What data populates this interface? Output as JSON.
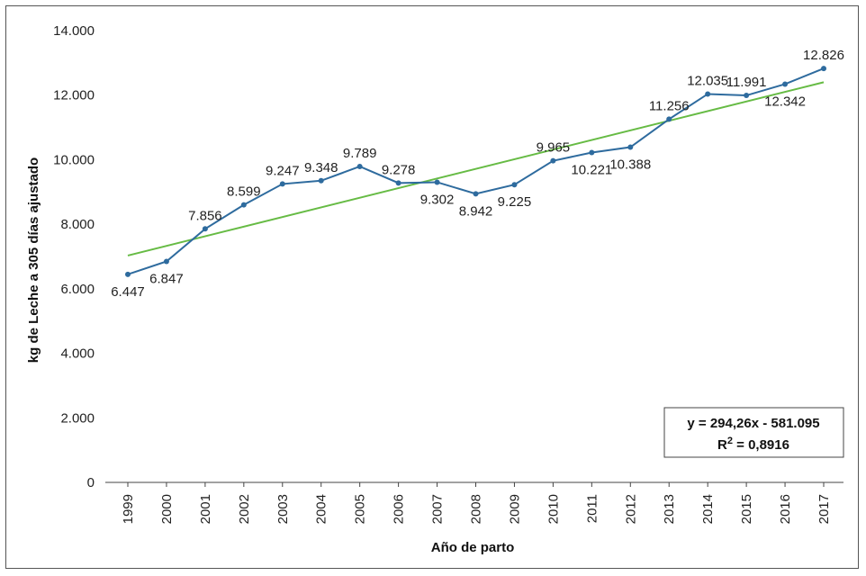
{
  "chart_data": {
    "type": "line",
    "xlabel": "Año de parto",
    "ylabel": "kg de Leche a 305 días ajustado",
    "ylim": [
      0,
      14000
    ],
    "y_ticks": [
      "0",
      "2.000",
      "4.000",
      "6.000",
      "8.000",
      "10.000",
      "12.000",
      "14.000"
    ],
    "categories": [
      "1999",
      "2000",
      "2001",
      "2002",
      "2003",
      "2004",
      "2005",
      "2006",
      "2007",
      "2008",
      "2009",
      "2010",
      "2011",
      "2012",
      "2013",
      "2014",
      "2015",
      "2016",
      "2017"
    ],
    "series": [
      {
        "values": [
          6447,
          6847,
          7856,
          8599,
          9247,
          9348,
          9789,
          9278,
          9302,
          8942,
          9225,
          9965,
          10221,
          10388,
          11256,
          12035,
          11991,
          12342,
          12826
        ],
        "labels": [
          "6.447",
          "6.847",
          "7.856",
          "8.599",
          "9.247",
          "9.348",
          "9.789",
          "9.278",
          "9.302",
          "8.942",
          "9.225",
          "9.965",
          "10.221",
          "10.388",
          "11.256",
          "12.035",
          "11.991",
          "12.342",
          "12.826"
        ],
        "label_pos": [
          "below",
          "below",
          "above",
          "above",
          "above",
          "above",
          "above",
          "above",
          "below",
          "below",
          "below",
          "above",
          "below",
          "below",
          "above",
          "above",
          "above",
          "below",
          "above"
        ],
        "color": "#2e6b9e"
      }
    ],
    "trendline": {
      "type": "linear",
      "start_value": 7030,
      "end_value": 12400,
      "color": "#66bb44",
      "equation": "y = 294,26x - 581.095",
      "r2_prefix": "R",
      "r2_exp": "2",
      "r2_value": " = 0,8916"
    },
    "grid": false,
    "legend": "none"
  }
}
